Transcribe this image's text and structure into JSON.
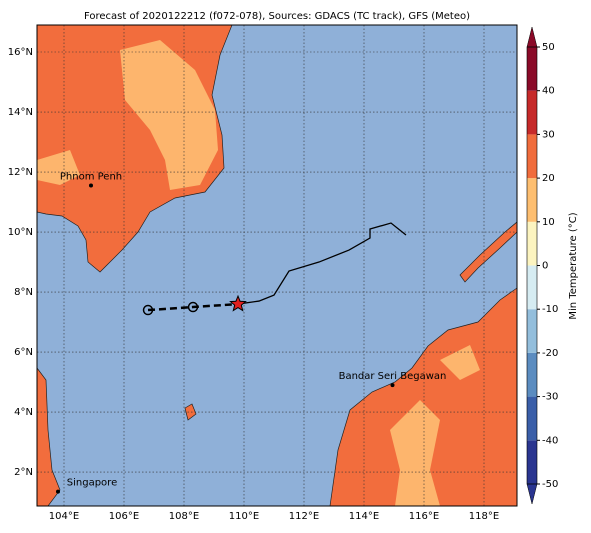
{
  "map": {
    "title": "Forecast of 2020122212 (f072-078), Sources: GDACS (TC track), GFS (Meteo)",
    "lonlim": [
      103.1,
      119.1
    ],
    "latlim": [
      0.87,
      16.9
    ],
    "lonticks": [
      {
        "value": 104,
        "label": "104°E"
      },
      {
        "value": 106,
        "label": "106°E"
      },
      {
        "value": 108,
        "label": "108°E"
      },
      {
        "value": 110,
        "label": "110°E"
      },
      {
        "value": 112,
        "label": "112°E"
      },
      {
        "value": 114,
        "label": "114°E"
      },
      {
        "value": 116,
        "label": "116°E"
      },
      {
        "value": 118,
        "label": "118°E"
      }
    ],
    "latticks": [
      {
        "value": 2,
        "label": "2°N"
      },
      {
        "value": 4,
        "label": "4°N"
      },
      {
        "value": 6,
        "label": "6°N"
      },
      {
        "value": 8,
        "label": "8°N"
      },
      {
        "value": 10,
        "label": "10°N"
      },
      {
        "value": 12,
        "label": "12°N"
      },
      {
        "value": 14,
        "label": "14°N"
      },
      {
        "value": 16,
        "label": "16°N"
      }
    ],
    "cities": [
      {
        "name": "Phnom Penh",
        "lon": 104.9,
        "lat": 11.55
      },
      {
        "name": "Bandar Seri Begawan",
        "lon": 114.95,
        "lat": 4.9
      },
      {
        "name": "Singapore",
        "lon": 103.8,
        "lat": 1.35
      }
    ],
    "forecast_track": {
      "lon": [
        106.8,
        108.3,
        109.8
      ],
      "lat": [
        7.4,
        7.5,
        7.6
      ]
    },
    "past_track": {
      "lon": [
        109.8,
        110.5,
        111.0,
        111.5,
        112.5,
        113.5,
        114.2,
        114.2,
        114.9,
        115.4
      ],
      "lat": [
        7.6,
        7.7,
        7.9,
        8.7,
        9.0,
        9.4,
        9.8,
        10.1,
        10.3,
        9.9
      ]
    },
    "colorbar": {
      "label": "Min Temperature (°C)",
      "lim": [
        -50,
        50
      ],
      "ticks": [
        -50,
        -40,
        -30,
        -20,
        -10,
        0,
        10,
        20,
        30,
        40,
        50
      ],
      "colors": [
        "#2a3590",
        "#3a5ea8",
        "#5b8cc0",
        "#93bedc",
        "#d6ecf2",
        "#fcf4c0",
        "#fdbe70",
        "#f06c3c",
        "#c62a2a",
        "#8a0a28"
      ]
    }
  }
}
